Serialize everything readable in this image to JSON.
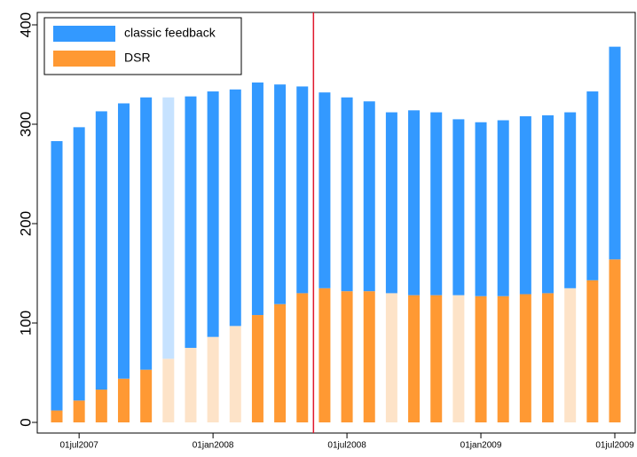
{
  "chart_data": {
    "type": "stacked_bar",
    "categories": [
      null,
      "01jul2007",
      null,
      null,
      null,
      null,
      null,
      "01jan2008",
      null,
      null,
      null,
      null,
      null,
      "01jul2008",
      null,
      null,
      null,
      null,
      null,
      "01jan2009",
      null,
      null,
      null,
      null,
      null,
      "01jul2009"
    ],
    "series": [
      {
        "name": "DSR",
        "color": "#ff9933",
        "colors": [
          "#ff9933",
          "#ff9933",
          "#ff9933",
          "#ff9933",
          "#ff9933",
          "#fde3c8",
          "#fde3c8",
          "#fde3c8",
          "#fde3c8",
          "#ff9933",
          "#ff9933",
          "#ff9933",
          "#ff9933",
          "#ff9933",
          "#ff9933",
          "#fde3c8",
          "#ff9933",
          "#ff9933",
          "#fde3c8",
          "#ff9933",
          "#ff9933",
          "#ff9933",
          "#ff9933",
          "#fde3c8",
          "#ff9933",
          "#ff9933"
        ],
        "values": [
          12,
          22,
          33,
          44,
          53,
          64,
          75,
          86,
          97,
          108,
          119,
          130,
          135,
          132,
          132,
          130,
          128,
          128,
          128,
          127,
          127,
          129,
          130,
          135,
          143,
          164
        ]
      },
      {
        "name": "classic feedback",
        "color": "#3399ff",
        "colors": [
          "#3399ff",
          "#3399ff",
          "#3399ff",
          "#3399ff",
          "#3399ff",
          "#c6e2ff",
          "#3399ff",
          "#3399ff",
          "#3399ff",
          "#3399ff",
          "#3399ff",
          "#3399ff",
          "#3399ff",
          "#3399ff",
          "#3399ff",
          "#3399ff",
          "#3399ff",
          "#3399ff",
          "#3399ff",
          "#3399ff",
          "#3399ff",
          "#3399ff",
          "#3399ff",
          "#3399ff",
          "#3399ff",
          "#3399ff"
        ],
        "values": [
          271,
          275,
          280,
          277,
          274,
          263,
          253,
          247,
          238,
          234,
          221,
          208,
          197,
          195,
          191,
          182,
          186,
          184,
          177,
          175,
          177,
          179,
          179,
          177,
          190,
          214
        ]
      }
    ],
    "legend_order": [
      1,
      0
    ],
    "reference_line": {
      "color": "#e0182d",
      "between": [
        11,
        12
      ]
    },
    "ylim": [
      0,
      400
    ],
    "yticks": [
      0,
      100,
      200,
      300,
      400
    ]
  }
}
